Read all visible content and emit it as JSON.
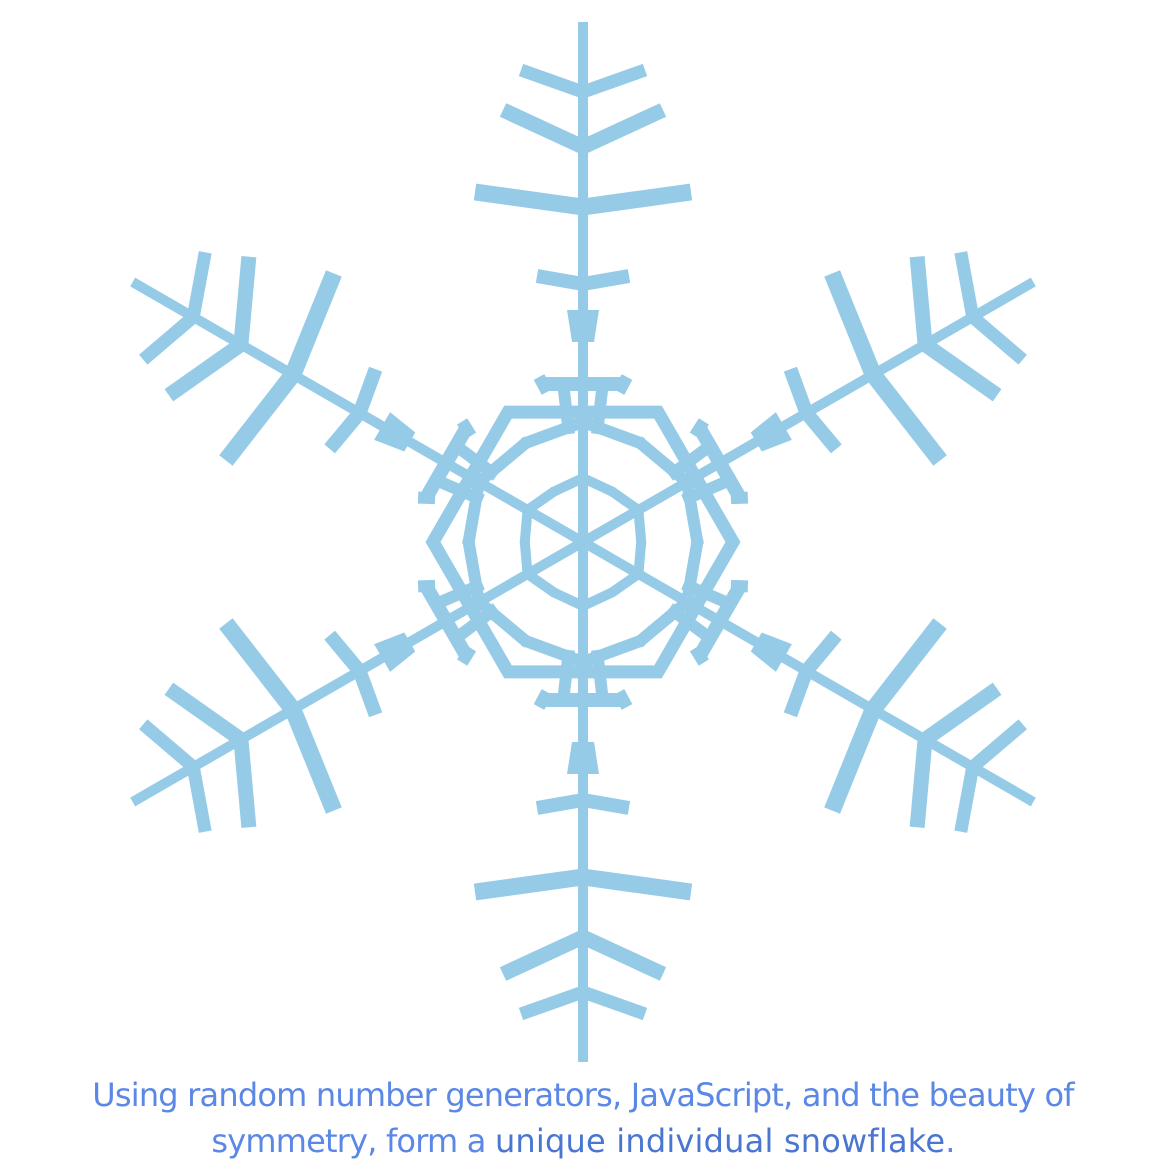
{
  "header": {
    "title_fragment": ""
  },
  "snowflake": {
    "color": "#96cbe8",
    "arms": 6
  },
  "caption": {
    "line1": "Using random number generators, JavaScript, and the beauty of",
    "line2_prefix": "symmetry, form a ",
    "line2_highlight": "unique individual snowflake",
    "line2_suffix": ".",
    "text_color": "#5b87e6",
    "highlight_color": "#4a76d2"
  }
}
